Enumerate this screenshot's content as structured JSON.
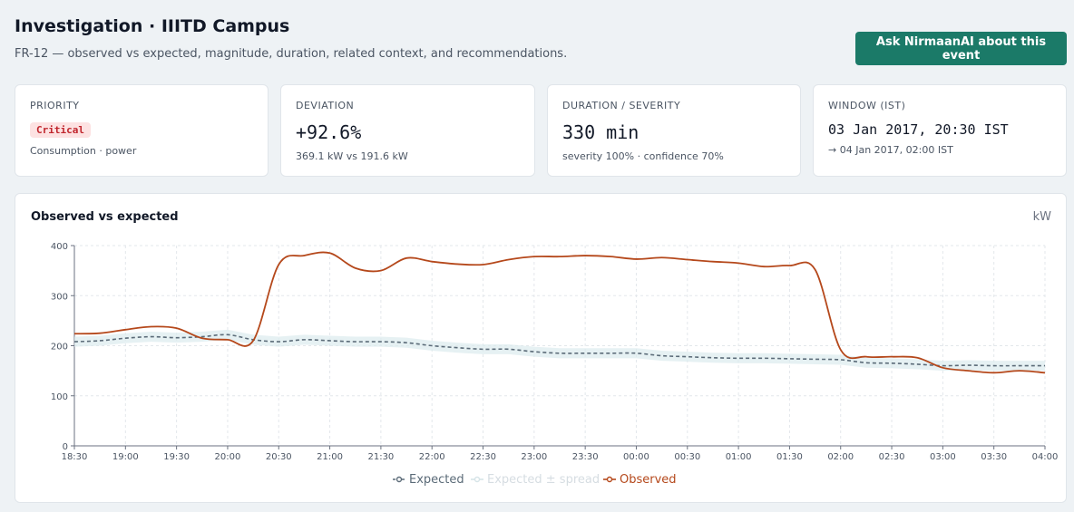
{
  "header": {
    "title": "Investigation · IIITD Campus",
    "subtitle": "FR-12 — observed vs expected, magnitude, duration, related context, and recommendations.",
    "ask_button": "Ask NirmaanAI about this event"
  },
  "cards": {
    "priority": {
      "label": "PRIORITY",
      "badge": "Critical",
      "sub": "Consumption · power"
    },
    "deviation": {
      "label": "DEVIATION",
      "value": "+92.6%",
      "sub": "369.1 kW vs 191.6 kW"
    },
    "duration": {
      "label": "DURATION / SEVERITY",
      "value": "330 min",
      "sub": "severity 100% · confidence 70%"
    },
    "window": {
      "label": "WINDOW (IST)",
      "value": "03 Jan 2017, 20:30 IST",
      "sub": "→ 04 Jan 2017, 02:00 IST"
    }
  },
  "colors": {
    "observed": "#b5481b",
    "expected": "#5b6b78",
    "spread": "#dcebee",
    "accent": "#1b7a68",
    "critical_bg": "#fde2e2",
    "critical_text": "#c0262d"
  },
  "chart_data": {
    "type": "line",
    "title": "Observed vs expected",
    "ylabel": "kW",
    "ylim": [
      0,
      400
    ],
    "yticks": [
      0,
      100,
      200,
      300,
      400
    ],
    "grid": true,
    "legend_position": "bottom-center",
    "x": [
      "18:30",
      "18:45",
      "19:00",
      "19:15",
      "19:30",
      "19:45",
      "20:00",
      "20:15",
      "20:30",
      "20:45",
      "21:00",
      "21:15",
      "21:30",
      "21:45",
      "22:00",
      "22:15",
      "22:30",
      "22:45",
      "23:00",
      "23:15",
      "23:30",
      "23:45",
      "00:00",
      "00:15",
      "00:30",
      "00:45",
      "01:00",
      "01:15",
      "01:30",
      "01:45",
      "02:00",
      "02:15",
      "02:30",
      "02:45",
      "03:00",
      "03:15",
      "03:30",
      "03:45",
      "04:00"
    ],
    "xticks": [
      "18:30",
      "19:00",
      "19:30",
      "20:00",
      "20:30",
      "21:00",
      "21:30",
      "22:00",
      "22:30",
      "23:00",
      "23:30",
      "00:00",
      "00:30",
      "01:00",
      "01:30",
      "02:00",
      "02:30",
      "03:00",
      "03:30",
      "04:00"
    ],
    "series": [
      {
        "name": "Expected",
        "values": [
          208,
          210,
          215,
          218,
          216,
          218,
          222,
          212,
          208,
          212,
          210,
          208,
          208,
          206,
          200,
          196,
          193,
          193,
          188,
          185,
          185,
          185,
          185,
          180,
          178,
          176,
          175,
          175,
          174,
          173,
          172,
          166,
          165,
          163,
          160,
          161,
          160,
          160,
          160
        ]
      },
      {
        "name": "Observed",
        "values": [
          224,
          225,
          232,
          238,
          235,
          215,
          212,
          210,
          362,
          380,
          385,
          355,
          350,
          375,
          368,
          363,
          362,
          372,
          378,
          378,
          380,
          378,
          373,
          376,
          372,
          368,
          365,
          358,
          360,
          352,
          192,
          178,
          178,
          176,
          156,
          150,
          146,
          150,
          146
        ]
      }
    ],
    "band": {
      "name": "Expected ± spread",
      "spread": 10
    }
  }
}
